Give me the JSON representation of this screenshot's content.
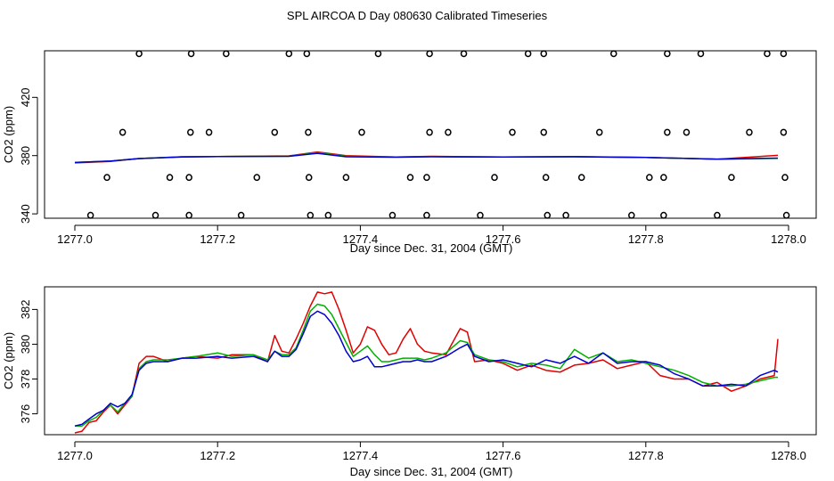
{
  "title": "SPL AIRCOA D  Day 080630  Calibrated Timeseries",
  "chart_data": [
    {
      "type": "scatter+line",
      "name": "top-panel",
      "xlabel": "Day since Dec. 31, 2004 (GMT)",
      "ylabel": "CO2 (ppm)",
      "xlim": [
        1277.0,
        1278.0
      ],
      "ylim": [
        337,
        452
      ],
      "xticks": [
        1277.0,
        1277.2,
        1277.4,
        1277.6,
        1277.8,
        1278.0
      ],
      "xtick_labels": [
        "1277.0",
        "1277.2",
        "1277.4",
        "1277.6",
        "1277.8",
        "1278.0"
      ],
      "yticks": [
        340,
        380,
        420
      ],
      "ytick_labels": [
        "340",
        "380",
        "420"
      ],
      "points": [
        {
          "x": 1277.09,
          "y": 450
        },
        {
          "x": 1277.163,
          "y": 450
        },
        {
          "x": 1277.212,
          "y": 450
        },
        {
          "x": 1277.3,
          "y": 450
        },
        {
          "x": 1277.325,
          "y": 450
        },
        {
          "x": 1277.425,
          "y": 450
        },
        {
          "x": 1277.497,
          "y": 450
        },
        {
          "x": 1277.545,
          "y": 450
        },
        {
          "x": 1277.635,
          "y": 450
        },
        {
          "x": 1277.657,
          "y": 450
        },
        {
          "x": 1277.755,
          "y": 450
        },
        {
          "x": 1277.83,
          "y": 450
        },
        {
          "x": 1277.877,
          "y": 450
        },
        {
          "x": 1277.97,
          "y": 450
        },
        {
          "x": 1277.993,
          "y": 450
        },
        {
          "x": 1277.067,
          "y": 396
        },
        {
          "x": 1277.162,
          "y": 396
        },
        {
          "x": 1277.188,
          "y": 396
        },
        {
          "x": 1277.28,
          "y": 396
        },
        {
          "x": 1277.327,
          "y": 396
        },
        {
          "x": 1277.402,
          "y": 396
        },
        {
          "x": 1277.497,
          "y": 396
        },
        {
          "x": 1277.523,
          "y": 396
        },
        {
          "x": 1277.613,
          "y": 396
        },
        {
          "x": 1277.657,
          "y": 396
        },
        {
          "x": 1277.735,
          "y": 396
        },
        {
          "x": 1277.83,
          "y": 396
        },
        {
          "x": 1277.857,
          "y": 396
        },
        {
          "x": 1277.945,
          "y": 396
        },
        {
          "x": 1277.993,
          "y": 396
        },
        {
          "x": 1277.045,
          "y": 365
        },
        {
          "x": 1277.133,
          "y": 365
        },
        {
          "x": 1277.16,
          "y": 365
        },
        {
          "x": 1277.255,
          "y": 365
        },
        {
          "x": 1277.328,
          "y": 365
        },
        {
          "x": 1277.38,
          "y": 365
        },
        {
          "x": 1277.47,
          "y": 365
        },
        {
          "x": 1277.493,
          "y": 365
        },
        {
          "x": 1277.588,
          "y": 365
        },
        {
          "x": 1277.66,
          "y": 365
        },
        {
          "x": 1277.71,
          "y": 365
        },
        {
          "x": 1277.805,
          "y": 365
        },
        {
          "x": 1277.825,
          "y": 365
        },
        {
          "x": 1277.92,
          "y": 365
        },
        {
          "x": 1277.995,
          "y": 365
        },
        {
          "x": 1277.022,
          "y": 339
        },
        {
          "x": 1277.113,
          "y": 339
        },
        {
          "x": 1277.16,
          "y": 339
        },
        {
          "x": 1277.233,
          "y": 339
        },
        {
          "x": 1277.33,
          "y": 339
        },
        {
          "x": 1277.355,
          "y": 339
        },
        {
          "x": 1277.445,
          "y": 339
        },
        {
          "x": 1277.493,
          "y": 339
        },
        {
          "x": 1277.568,
          "y": 339
        },
        {
          "x": 1277.662,
          "y": 339
        },
        {
          "x": 1277.688,
          "y": 339
        },
        {
          "x": 1277.78,
          "y": 339
        },
        {
          "x": 1277.825,
          "y": 339
        },
        {
          "x": 1277.9,
          "y": 339
        },
        {
          "x": 1277.997,
          "y": 339
        }
      ],
      "series": [
        {
          "name": "red",
          "color": "#e00000",
          "x": [
            1277.0,
            1277.05,
            1277.09,
            1277.15,
            1277.2,
            1277.3,
            1277.34,
            1277.38,
            1277.45,
            1277.5,
            1277.6,
            1277.7,
            1277.8,
            1277.9,
            1277.985
          ],
          "y": [
            375.0,
            376.0,
            378.0,
            379.2,
            379.4,
            379.8,
            382.5,
            380.0,
            379.0,
            379.5,
            379.0,
            379.3,
            378.8,
            377.5,
            380.2
          ]
        },
        {
          "name": "green",
          "color": "#00b000",
          "x": [
            1277.0,
            1277.05,
            1277.09,
            1277.15,
            1277.2,
            1277.3,
            1277.34,
            1277.38,
            1277.45,
            1277.5,
            1277.6,
            1277.7,
            1277.8,
            1277.9,
            1277.985
          ],
          "y": [
            375.3,
            376.2,
            378.0,
            379.2,
            379.4,
            379.6,
            382.0,
            379.5,
            379.0,
            379.3,
            379.0,
            379.2,
            378.8,
            377.5,
            378.1
          ]
        },
        {
          "name": "blue",
          "color": "#0000d0",
          "x": [
            1277.0,
            1277.05,
            1277.09,
            1277.15,
            1277.2,
            1277.3,
            1277.34,
            1277.38,
            1277.45,
            1277.5,
            1277.6,
            1277.7,
            1277.8,
            1277.9,
            1277.985
          ],
          "y": [
            375.3,
            376.3,
            378.0,
            379.1,
            379.3,
            379.5,
            381.6,
            379.2,
            378.9,
            379.2,
            379.0,
            379.2,
            378.8,
            377.6,
            378.3
          ]
        }
      ]
    },
    {
      "type": "line",
      "name": "bottom-panel",
      "xlabel": "Day since Dec. 31, 2004 (GMT)",
      "ylabel": "CO2 (ppm)",
      "xlim": [
        1277.0,
        1278.0
      ],
      "ylim": [
        374.8,
        383.3
      ],
      "xticks": [
        1277.0,
        1277.2,
        1277.4,
        1277.6,
        1277.8,
        1278.0
      ],
      "xtick_labels": [
        "1277.0",
        "1277.2",
        "1277.4",
        "1277.6",
        "1277.8",
        "1278.0"
      ],
      "yticks": [
        376,
        378,
        380,
        382
      ],
      "ytick_labels": [
        "376",
        "378",
        "380",
        "382"
      ],
      "series": [
        {
          "name": "red",
          "color": "#e00000",
          "x": [
            1277.0,
            1277.01,
            1277.02,
            1277.03,
            1277.04,
            1277.05,
            1277.06,
            1277.07,
            1277.08,
            1277.09,
            1277.1,
            1277.11,
            1277.13,
            1277.15,
            1277.17,
            1277.2,
            1277.22,
            1277.25,
            1277.27,
            1277.28,
            1277.29,
            1277.3,
            1277.31,
            1277.32,
            1277.33,
            1277.34,
            1277.35,
            1277.36,
            1277.37,
            1277.38,
            1277.39,
            1277.4,
            1277.41,
            1277.42,
            1277.43,
            1277.44,
            1277.45,
            1277.46,
            1277.47,
            1277.48,
            1277.49,
            1277.5,
            1277.52,
            1277.54,
            1277.55,
            1277.56,
            1277.58,
            1277.6,
            1277.62,
            1277.64,
            1277.66,
            1277.68,
            1277.7,
            1277.72,
            1277.74,
            1277.76,
            1277.78,
            1277.8,
            1277.82,
            1277.84,
            1277.86,
            1277.88,
            1277.9,
            1277.92,
            1277.94,
            1277.96,
            1277.98,
            1277.985
          ],
          "y": [
            374.9,
            375.0,
            375.5,
            375.6,
            376.1,
            376.5,
            376.0,
            376.5,
            377.0,
            378.9,
            379.3,
            379.3,
            379.0,
            379.2,
            379.3,
            379.2,
            379.4,
            379.4,
            379.0,
            380.5,
            379.6,
            379.5,
            380.3,
            381.2,
            382.2,
            383.0,
            382.9,
            383.0,
            382.0,
            380.8,
            379.5,
            380.0,
            381.0,
            380.8,
            380.0,
            379.4,
            379.5,
            380.3,
            380.9,
            380.0,
            379.6,
            379.5,
            379.4,
            380.9,
            380.7,
            379.0,
            379.1,
            378.9,
            378.5,
            378.8,
            378.5,
            378.4,
            378.8,
            378.9,
            379.1,
            378.6,
            378.8,
            379.0,
            378.2,
            378.0,
            378.0,
            377.6,
            377.8,
            377.3,
            377.6,
            378.0,
            378.2,
            380.3
          ]
        },
        {
          "name": "green",
          "color": "#00b000",
          "x": [
            1277.0,
            1277.01,
            1277.02,
            1277.03,
            1277.04,
            1277.05,
            1277.06,
            1277.07,
            1277.08,
            1277.09,
            1277.1,
            1277.11,
            1277.13,
            1277.15,
            1277.17,
            1277.2,
            1277.22,
            1277.25,
            1277.27,
            1277.28,
            1277.29,
            1277.3,
            1277.31,
            1277.32,
            1277.33,
            1277.34,
            1277.35,
            1277.36,
            1277.37,
            1277.38,
            1277.39,
            1277.4,
            1277.41,
            1277.42,
            1277.43,
            1277.44,
            1277.45,
            1277.46,
            1277.47,
            1277.48,
            1277.49,
            1277.5,
            1277.52,
            1277.54,
            1277.55,
            1277.56,
            1277.58,
            1277.6,
            1277.62,
            1277.64,
            1277.66,
            1277.68,
            1277.7,
            1277.72,
            1277.74,
            1277.76,
            1277.78,
            1277.8,
            1277.82,
            1277.84,
            1277.86,
            1277.88,
            1277.9,
            1277.92,
            1277.94,
            1277.96,
            1277.98,
            1277.985
          ],
          "y": [
            375.3,
            375.3,
            375.6,
            375.8,
            376.2,
            376.5,
            376.1,
            376.6,
            377.0,
            378.6,
            379.0,
            379.1,
            379.1,
            379.2,
            379.3,
            379.5,
            379.3,
            379.4,
            379.1,
            379.6,
            379.4,
            379.4,
            379.8,
            380.8,
            381.9,
            382.3,
            382.2,
            381.7,
            380.9,
            380.1,
            379.3,
            379.6,
            379.9,
            379.4,
            379.0,
            379.0,
            379.1,
            379.2,
            379.2,
            379.2,
            379.1,
            379.2,
            379.5,
            380.2,
            380.1,
            379.4,
            379.1,
            379.0,
            378.7,
            378.9,
            378.8,
            378.6,
            379.7,
            379.2,
            379.5,
            379.0,
            379.1,
            378.9,
            378.7,
            378.5,
            378.2,
            377.8,
            377.6,
            377.6,
            377.7,
            377.9,
            378.1,
            378.1
          ]
        },
        {
          "name": "blue",
          "color": "#0000d0",
          "x": [
            1277.0,
            1277.01,
            1277.02,
            1277.03,
            1277.04,
            1277.05,
            1277.06,
            1277.07,
            1277.08,
            1277.09,
            1277.1,
            1277.11,
            1277.13,
            1277.15,
            1277.17,
            1277.2,
            1277.22,
            1277.25,
            1277.27,
            1277.28,
            1277.29,
            1277.3,
            1277.31,
            1277.32,
            1277.33,
            1277.34,
            1277.35,
            1277.36,
            1277.37,
            1277.38,
            1277.39,
            1277.4,
            1277.41,
            1277.42,
            1277.43,
            1277.44,
            1277.45,
            1277.46,
            1277.47,
            1277.48,
            1277.49,
            1277.5,
            1277.52,
            1277.54,
            1277.55,
            1277.56,
            1277.58,
            1277.6,
            1277.62,
            1277.64,
            1277.66,
            1277.68,
            1277.7,
            1277.72,
            1277.74,
            1277.76,
            1277.78,
            1277.8,
            1277.82,
            1277.84,
            1277.86,
            1277.88,
            1277.9,
            1277.92,
            1277.94,
            1277.96,
            1277.98,
            1277.985
          ],
          "y": [
            375.3,
            375.4,
            375.7,
            376.0,
            376.2,
            376.6,
            376.4,
            376.6,
            377.1,
            378.5,
            378.9,
            379.0,
            379.0,
            379.2,
            379.2,
            379.3,
            379.2,
            379.3,
            379.0,
            379.6,
            379.3,
            379.3,
            379.7,
            380.6,
            381.6,
            381.9,
            381.7,
            381.2,
            380.5,
            379.6,
            379.0,
            379.1,
            379.3,
            378.7,
            378.7,
            378.8,
            378.9,
            379.0,
            379.0,
            379.1,
            379.0,
            379.0,
            379.3,
            379.8,
            380.0,
            379.3,
            379.0,
            379.1,
            378.9,
            378.7,
            379.1,
            378.9,
            379.3,
            378.9,
            379.5,
            378.9,
            379.0,
            379.0,
            378.8,
            378.3,
            378.0,
            377.6,
            377.6,
            377.7,
            377.6,
            378.2,
            378.5,
            378.4
          ]
        }
      ]
    }
  ]
}
